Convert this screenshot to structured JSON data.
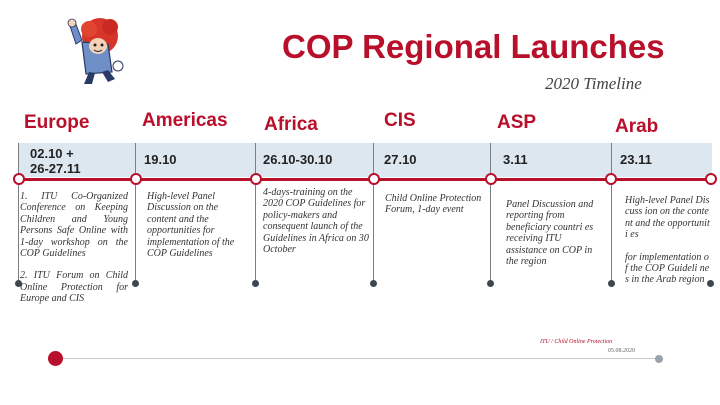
{
  "header": {
    "title": "COP Regional Launches",
    "subtitle": "2020 Timeline"
  },
  "colors": {
    "accent": "#b80f2a",
    "band": "#dde7f0",
    "node": "#3b4650"
  },
  "timeline": [
    {
      "region": "Europe",
      "date_line1": "02.10 +",
      "date_line2": "26-27.11",
      "desc": [
        "1. ITU Co-Organized Conference on Keeping Children and Young Persons Safe Online with 1-day workshop on the COP Guidelines",
        "2. ITU Forum on Child Online Protection for Europe and CIS"
      ]
    },
    {
      "region": "Americas",
      "date_line1": "19.10",
      "date_line2": "",
      "desc": [
        "High-level Panel Discussion on the content and the opportunities for implementation of the COP Guidelines"
      ]
    },
    {
      "region": "Africa",
      "date_line1": "26.10-30.10",
      "date_line2": "",
      "desc": [
        "4-days-training on the 2020 COP Guidelines for policy-makers and consequent launch of the Guidelines in Africa on 30 October"
      ]
    },
    {
      "region": "CIS",
      "date_line1": "27.10",
      "date_line2": "",
      "desc": [
        "Child Online Protection Forum, 1-day event"
      ]
    },
    {
      "region": "ASP",
      "date_line1": "3.11",
      "date_line2": "",
      "desc": [
        "Panel Discussion and reporting from beneficiary countri es receiving ITU assistance on COP in the region"
      ]
    },
    {
      "region": "Arab",
      "date_line1": "23.11",
      "date_line2": "",
      "desc": [
        "High-level Panel Discuss ion on the content and the opportuniti es",
        "for implementation of the COP Guideli nes in the Arab region"
      ]
    }
  ],
  "footer": {
    "source": "ITU / Child Online Protection",
    "date": "05.08.2020"
  }
}
